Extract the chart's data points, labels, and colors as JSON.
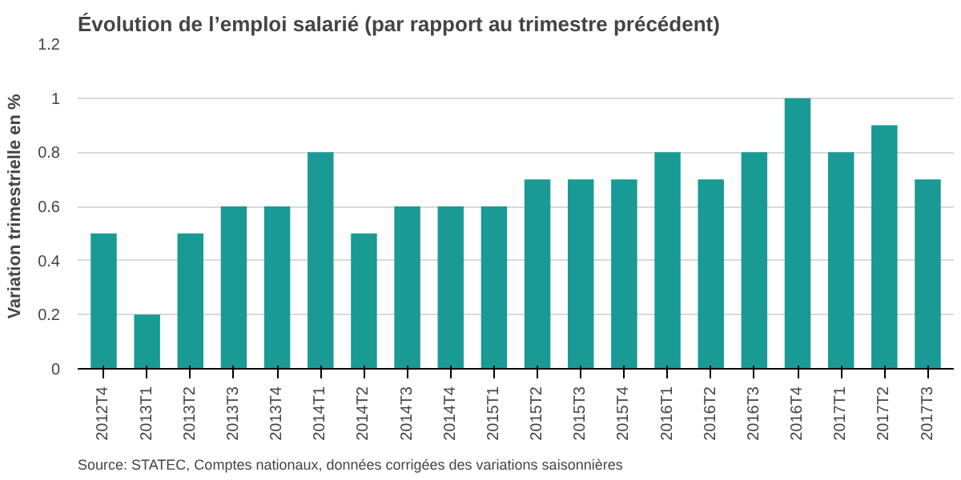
{
  "chart_data": {
    "type": "bar",
    "title": "Évolution de l’emploi salarié (par rapport au trimestre précédent)",
    "ylabel": "Variation trimestrielle en %",
    "categories": [
      "2012T4",
      "2013T1",
      "2013T2",
      "2013T3",
      "2013T4",
      "2014T1",
      "2014T2",
      "2014T3",
      "2014T4",
      "2015T1",
      "2015T2",
      "2015T3",
      "2015T4",
      "2016T1",
      "2016T2",
      "2016T3",
      "2016T4",
      "2017T1",
      "2017T2",
      "2017T3"
    ],
    "values": [
      0.5,
      0.2,
      0.5,
      0.6,
      0.6,
      0.8,
      0.5,
      0.6,
      0.6,
      0.6,
      0.7,
      0.7,
      0.7,
      0.8,
      0.7,
      0.8,
      1.0,
      0.8,
      0.9,
      0.7
    ],
    "color": "#1a9a94",
    "ylim": [
      0,
      1.2
    ],
    "yticks": [
      0,
      0.2,
      0.4,
      0.6,
      0.8,
      1,
      1.2
    ],
    "grid": "y",
    "annotations": [
      "Source: STATEC, Comptes nationaux, données corrigées des variations saisonnières"
    ]
  }
}
